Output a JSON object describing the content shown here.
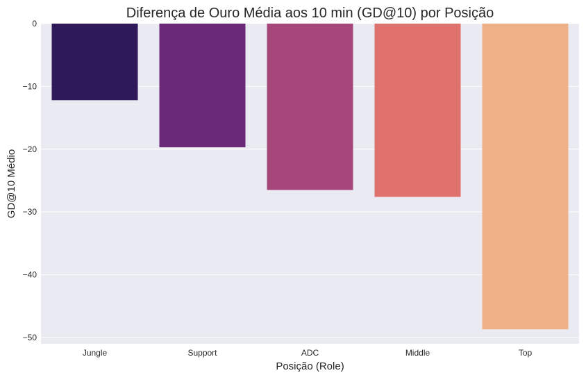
{
  "chart_data": {
    "type": "bar",
    "title": "Diferença de Ouro Média aos 10 min (GD@10) por Posição",
    "xlabel": "Posição (Role)",
    "ylabel": "GD@10 Médio",
    "categories": [
      "Jungle",
      "Support",
      "ADC",
      "Middle",
      "Top"
    ],
    "values": [
      -12.2,
      -19.7,
      -26.5,
      -27.6,
      -48.7
    ],
    "colors": [
      "#2e1a59",
      "#6b2a77",
      "#a6467a",
      "#e0726e",
      "#efb188"
    ],
    "ylim": [
      -51,
      0
    ],
    "yticks": [
      0,
      -10,
      -20,
      -30,
      -40,
      -50
    ],
    "ytick_labels": [
      "0",
      "−10",
      "−20",
      "−30",
      "−40",
      "−50"
    ],
    "grid": true,
    "background": "#eaeaf2",
    "grid_color": "#ffffff"
  }
}
